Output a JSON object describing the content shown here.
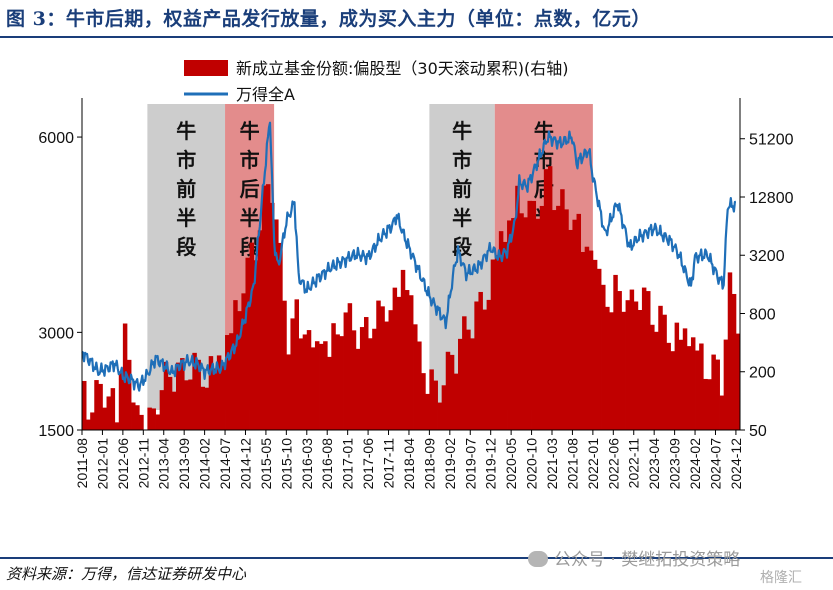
{
  "header": {
    "title": "图 3：牛市后期，权益产品发行放量，成为买入主力（单位：点数，亿元）"
  },
  "footer": {
    "source": "资料来源：万得，信达证券研发中心"
  },
  "watermark": {
    "text": "公众号 · 樊继拓投资策略",
    "badge": "格隆汇"
  },
  "chart_data": {
    "type": "bar+line",
    "title": "",
    "legend": [
      {
        "name": "新成立基金份额:偏股型（30天滚动累积)(右轴)",
        "kind": "bar",
        "color": "#c00000"
      },
      {
        "name": "万得全A",
        "kind": "line",
        "color": "#1f6fb8"
      }
    ],
    "y_left": {
      "scale": "linear",
      "range": [
        1500,
        6600
      ],
      "ticks": [
        1500,
        3000,
        6000
      ]
    },
    "y_right": {
      "scale": "log",
      "range": [
        50,
        135000
      ],
      "ticks": [
        50,
        200,
        800,
        3200,
        12800,
        51200
      ]
    },
    "x_ticks": [
      "2011-08",
      "2012-01",
      "2012-06",
      "2012-11",
      "2013-04",
      "2013-09",
      "2014-02",
      "2014-07",
      "2014-12",
      "2015-05",
      "2015-10",
      "2016-03",
      "2016-08",
      "2017-01",
      "2017-06",
      "2017-11",
      "2018-04",
      "2018-09",
      "2019-02",
      "2019-07",
      "2019-12",
      "2020-05",
      "2020-10",
      "2021-03",
      "2021-08",
      "2022-01",
      "2022-06",
      "2022-11",
      "2023-04",
      "2023-09",
      "2024-02",
      "2024-07",
      "2024-12"
    ],
    "x_range": [
      "2011-08",
      "2025-01"
    ],
    "phases": [
      {
        "label": "牛市前半段",
        "start": "2012-12",
        "end": "2014-06",
        "color": "#c8c8c8"
      },
      {
        "label": "牛市后半段",
        "start": "2014-07",
        "end": "2015-06",
        "color": "#e07f7f"
      },
      {
        "label": "牛市前半段",
        "start": "2018-09",
        "end": "2019-12",
        "color": "#c8c8c8"
      },
      {
        "label": "牛市后半段",
        "start": "2020-01",
        "end": "2021-12",
        "color": "#e07f7f"
      }
    ],
    "series": [
      {
        "name": "万得全A",
        "axis": "left",
        "x": [
          "2011-08",
          "2011-10",
          "2011-12",
          "2012-02",
          "2012-04",
          "2012-06",
          "2012-08",
          "2012-10",
          "2012-12",
          "2013-02",
          "2013-04",
          "2013-06",
          "2013-08",
          "2013-10",
          "2013-12",
          "2014-02",
          "2014-04",
          "2014-06",
          "2014-08",
          "2014-10",
          "2014-12",
          "2015-02",
          "2015-04",
          "2015-06",
          "2015-07",
          "2015-08",
          "2015-10",
          "2015-12",
          "2016-01",
          "2016-03",
          "2016-06",
          "2016-09",
          "2016-12",
          "2017-03",
          "2017-06",
          "2017-09",
          "2017-12",
          "2018-01",
          "2018-03",
          "2018-06",
          "2018-09",
          "2018-12",
          "2019-01",
          "2019-03",
          "2019-04",
          "2019-06",
          "2019-09",
          "2019-12",
          "2020-02",
          "2020-04",
          "2020-06",
          "2020-07",
          "2020-09",
          "2020-12",
          "2021-02",
          "2021-05",
          "2021-08",
          "2021-09",
          "2021-12",
          "2022-01",
          "2022-04",
          "2022-07",
          "2022-10",
          "2022-12",
          "2023-04",
          "2023-08",
          "2023-10",
          "2024-01",
          "2024-02",
          "2024-05",
          "2024-08",
          "2024-09",
          "2024-10",
          "2024-12"
        ],
        "values": [
          2700,
          2560,
          2400,
          2440,
          2520,
          2330,
          2270,
          2180,
          2350,
          2600,
          2500,
          2380,
          2500,
          2560,
          2520,
          2400,
          2430,
          2450,
          2640,
          2850,
          3250,
          3700,
          5000,
          6300,
          4400,
          4000,
          4700,
          5000,
          3850,
          3650,
          3850,
          4000,
          4100,
          4200,
          4150,
          4450,
          4650,
          4800,
          4450,
          4000,
          3550,
          3250,
          3150,
          3950,
          4250,
          3900,
          4000,
          4300,
          4150,
          4250,
          4700,
          5300,
          5250,
          5700,
          6000,
          5900,
          6000,
          5600,
          5800,
          5400,
          4500,
          5000,
          4300,
          4450,
          4600,
          4400,
          4200,
          3700,
          4150,
          4200,
          3800,
          3750,
          4950,
          4950
        ]
      },
      {
        "name": "新成立基金份额:偏股型（30天滚动累积)(右轴)",
        "axis": "right",
        "x": [
          "2011-08",
          "2011-10",
          "2011-12",
          "2012-02",
          "2012-04",
          "2012-06",
          "2012-08",
          "2012-10",
          "2012-12",
          "2013-02",
          "2013-04",
          "2013-06",
          "2013-08",
          "2013-10",
          "2013-12",
          "2014-02",
          "2014-04",
          "2014-06",
          "2014-08",
          "2014-10",
          "2014-12",
          "2015-02",
          "2015-04",
          "2015-06",
          "2015-08",
          "2015-10",
          "2015-12",
          "2016-02",
          "2016-04",
          "2016-06",
          "2016-08",
          "2016-10",
          "2016-12",
          "2017-02",
          "2017-04",
          "2017-06",
          "2017-08",
          "2017-10",
          "2017-12",
          "2018-02",
          "2018-04",
          "2018-06",
          "2018-08",
          "2018-10",
          "2018-12",
          "2019-02",
          "2019-04",
          "2019-06",
          "2019-08",
          "2019-10",
          "2019-12",
          "2020-02",
          "2020-04",
          "2020-06",
          "2020-08",
          "2020-10",
          "2020-12",
          "2021-02",
          "2021-04",
          "2021-06",
          "2021-08",
          "2021-10",
          "2021-12",
          "2022-02",
          "2022-04",
          "2022-06",
          "2022-08",
          "2022-10",
          "2022-12",
          "2023-02",
          "2023-04",
          "2023-06",
          "2023-08",
          "2023-10",
          "2023-12",
          "2024-02",
          "2024-04",
          "2024-06",
          "2024-08",
          "2024-10",
          "2024-12"
        ],
        "values": [
          130,
          90,
          150,
          120,
          95,
          700,
          110,
          90,
          70,
          110,
          180,
          220,
          200,
          260,
          230,
          210,
          280,
          380,
          650,
          1500,
          2600,
          5000,
          12000,
          20000,
          3000,
          500,
          900,
          700,
          400,
          500,
          450,
          600,
          800,
          700,
          450,
          700,
          800,
          1000,
          1200,
          2600,
          1300,
          400,
          200,
          150,
          170,
          300,
          400,
          700,
          900,
          1400,
          2600,
          6000,
          8000,
          14000,
          12000,
          9000,
          15000,
          22000,
          12000,
          10000,
          8000,
          6000,
          4000,
          2500,
          1200,
          1600,
          1300,
          1000,
          1500,
          1000,
          800,
          700,
          500,
          600,
          600,
          400,
          300,
          250,
          200,
          1500,
          900
        ]
      }
    ]
  }
}
